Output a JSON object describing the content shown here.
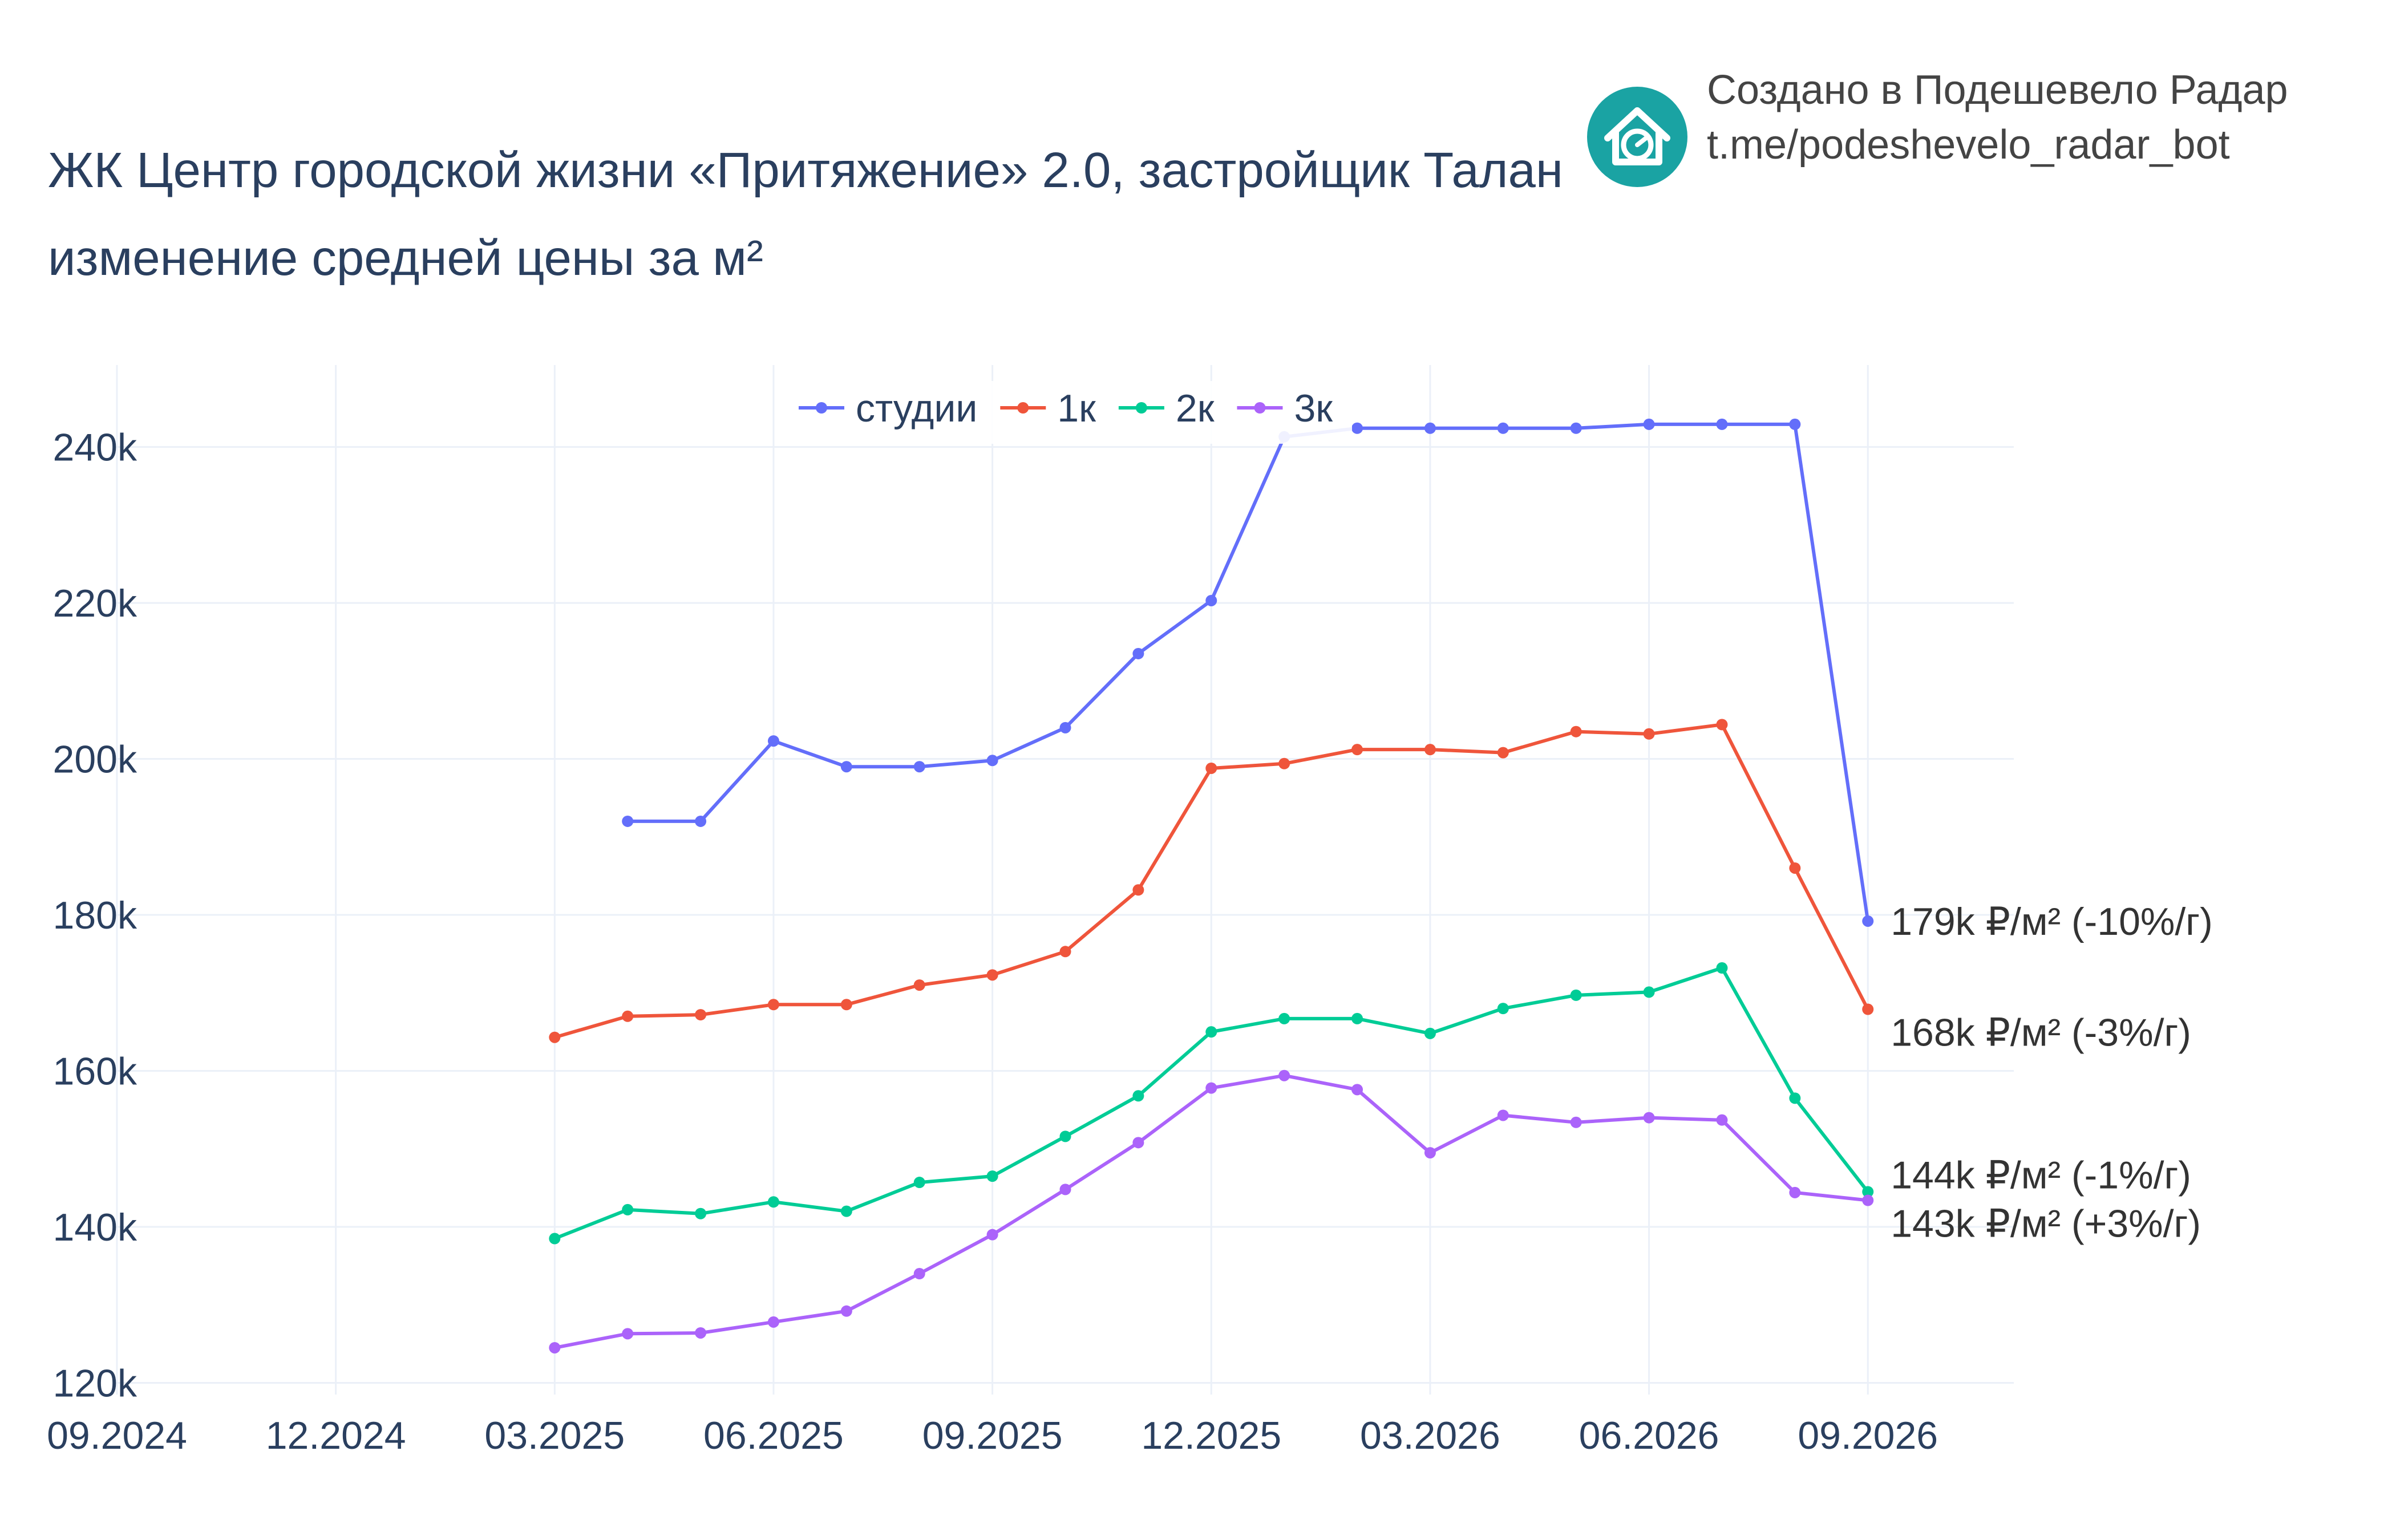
{
  "header": {
    "title_line1": "ЖК Центр городской жизни «Притяжение» 2.0, застройщик Талан",
    "title_line2": "изменение средней цены за м²"
  },
  "branding": {
    "line1": "Создано в Подешевело Радар",
    "line2": "t.me/podeshevelo_radar_bot",
    "logo_icon": "house-chart-icon",
    "logo_color": "#1aa3a3"
  },
  "chart_data": {
    "type": "line",
    "x_tick_labels": [
      "09.2024",
      "12.2024",
      "03.2025",
      "06.2025",
      "09.2025",
      "12.2025",
      "03.2026",
      "06.2026",
      "09.2026"
    ],
    "y_tick_labels": [
      "120k",
      "140k",
      "160k",
      "180k",
      "200k",
      "220k",
      "240k"
    ],
    "ylim": [
      118500,
      250500
    ],
    "xlim": [
      "2024-09",
      "2026-11"
    ],
    "grid": true,
    "legend_position": "top-center",
    "x": [
      "2025-03",
      "2025-04",
      "2025-05",
      "2025-06",
      "2025-07",
      "2025-08",
      "2025-09",
      "2025-10",
      "2025-11",
      "2025-12",
      "2026-01",
      "2026-02",
      "2026-03",
      "2026-04",
      "2026-05",
      "2026-06",
      "2026-07",
      "2026-08",
      "2026-09"
    ],
    "series": [
      {
        "name": "студии",
        "color": "#636efa",
        "values": [
          null,
          192000,
          192000,
          202300,
          199000,
          199000,
          199800,
          204000,
          213500,
          220300,
          241300,
          242400,
          242400,
          242400,
          242400,
          242900,
          242900,
          242900,
          179200
        ],
        "end_label": "179k ₽/м² (-10%/г)"
      },
      {
        "name": "1к",
        "color": "#ef553b",
        "values": [
          164300,
          167000,
          167200,
          168500,
          168500,
          171000,
          172300,
          175300,
          183200,
          198800,
          199400,
          201200,
          201200,
          200800,
          203500,
          203200,
          204400,
          186000,
          167900
        ],
        "end_label": "168k ₽/м² (-3%/г)"
      },
      {
        "name": "2к",
        "color": "#00cc96",
        "values": [
          138500,
          142200,
          141700,
          143200,
          142000,
          145700,
          146500,
          151600,
          156800,
          165000,
          166700,
          166700,
          164800,
          168000,
          169700,
          170100,
          173200,
          156500,
          144500
        ],
        "end_label": "144k ₽/м² (-1%/г)"
      },
      {
        "name": "3к",
        "color": "#ab63fa",
        "values": [
          124500,
          126300,
          126400,
          127800,
          129200,
          134000,
          139000,
          144800,
          150800,
          157800,
          159400,
          157600,
          149500,
          154300,
          153400,
          154000,
          153700,
          144400,
          143400
        ],
        "end_label": "143k ₽/м² (+3%/г)"
      }
    ]
  }
}
